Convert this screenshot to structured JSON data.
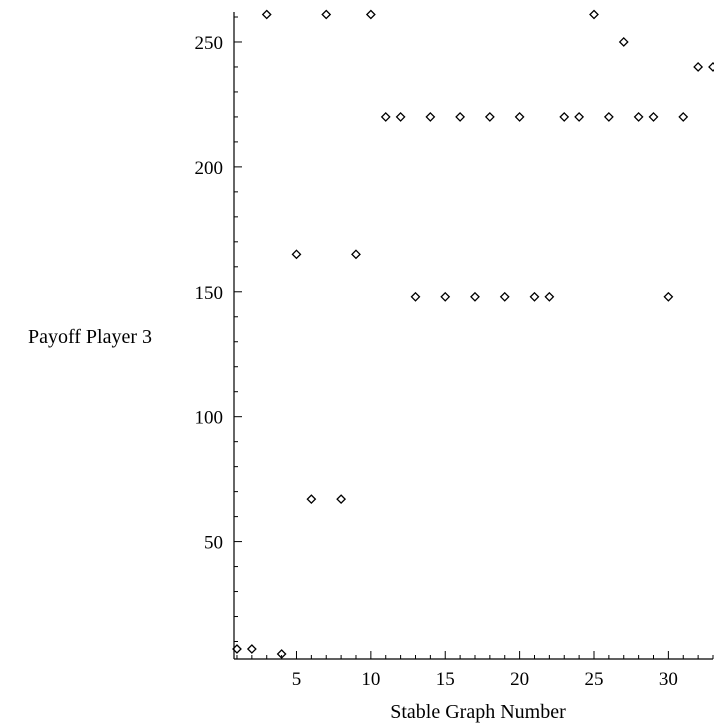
{
  "chart_data": {
    "type": "scatter",
    "title": "",
    "xlabel": "Stable Graph Number",
    "ylabel": "Payoff Player 3",
    "x": [
      1,
      2,
      3,
      4,
      5,
      6,
      7,
      8,
      9,
      10,
      11,
      12,
      13,
      14,
      15,
      16,
      17,
      18,
      19,
      20,
      21,
      22,
      23,
      24,
      25,
      26,
      27,
      28,
      29,
      30,
      31,
      32,
      33
    ],
    "y": [
      7,
      7,
      261,
      5,
      165,
      67,
      261,
      67,
      165,
      261,
      220,
      220,
      148,
      220,
      148,
      220,
      148,
      220,
      148,
      220,
      148,
      148,
      220,
      220,
      261,
      220,
      250,
      220,
      220,
      148,
      220,
      240,
      240
    ],
    "xlim": [
      0.8,
      33
    ],
    "ylim": [
      3,
      262
    ],
    "xticks": [
      5,
      10,
      15,
      20,
      25,
      30
    ],
    "yticks": [
      50,
      100,
      150,
      200,
      250
    ],
    "marker": "open-diamond",
    "grid": false,
    "legend": "none",
    "colors": {
      "marker": "#000000",
      "axis": "#000000"
    }
  }
}
